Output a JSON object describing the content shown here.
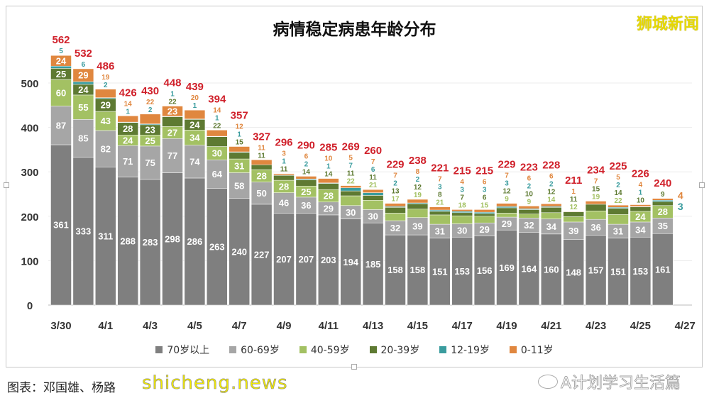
{
  "title": "病情稳定病患年龄分布",
  "watermark_top": "狮城新闻",
  "source": "图表：邓国雄、杨路",
  "watermark_site": "shicheng.news",
  "account_label": "A计划学习生活篇",
  "chart_data": {
    "type": "bar",
    "stacked": true,
    "title": "病情稳定病患年龄分布",
    "ylim": [
      0,
      550
    ],
    "yticks": [
      0,
      100,
      200,
      300,
      400,
      500
    ],
    "grid": true,
    "legend_position": "bottom",
    "categories": [
      "3/30",
      "3/31",
      "4/1",
      "4/2",
      "4/3",
      "4/4",
      "4/5",
      "4/6",
      "4/7",
      "4/8",
      "4/9",
      "4/10",
      "4/11",
      "4/12",
      "4/13",
      "4/14",
      "4/15",
      "4/16",
      "4/17",
      "4/18",
      "4/19",
      "4/20",
      "4/21",
      "4/22",
      "4/23",
      "4/24",
      "4/25",
      "4/26",
      "4/27"
    ],
    "xtick_labels": [
      "3/30",
      "4/1",
      "4/3",
      "4/5",
      "4/7",
      "4/9",
      "4/11",
      "4/13",
      "4/15",
      "4/17",
      "4/19",
      "4/21",
      "4/23",
      "4/25",
      "4/27"
    ],
    "series": [
      {
        "name": "70岁以上",
        "color": "#7f7f7f",
        "values": [
          361,
          333,
          311,
          288,
          283,
          298,
          286,
          263,
          240,
          227,
          207,
          207,
          203,
          194,
          185,
          158,
          158,
          151,
          153,
          156,
          169,
          164,
          160,
          148,
          157,
          151,
          153,
          161,
          null
        ]
      },
      {
        "name": "60-69岁",
        "color": "#a6a6a6",
        "values": [
          87,
          85,
          82,
          71,
          75,
          77,
          74,
          64,
          58,
          50,
          46,
          36,
          29,
          30,
          30,
          32,
          39,
          31,
          30,
          29,
          29,
          32,
          34,
          39,
          36,
          31,
          34,
          35,
          null
        ]
      },
      {
        "name": "40-59岁",
        "color": "#a3c163",
        "values": [
          60,
          55,
          43,
          24,
          25,
          27,
          34,
          30,
          31,
          28,
          28,
          25,
          28,
          22,
          21,
          17,
          19,
          21,
          18,
          15,
          9,
          9,
          14,
          12,
          19,
          22,
          24,
          28,
          null
        ]
      },
      {
        "name": "20-39岁",
        "color": "#5e7a32",
        "values": [
          25,
          24,
          29,
          28,
          23,
          22,
          24,
          22,
          15,
          11,
          11,
          14,
          14,
          11,
          11,
          13,
          12,
          8,
          7,
          6,
          12,
          10,
          12,
          11,
          15,
          14,
          10,
          9,
          null
        ]
      },
      {
        "name": "12-19岁",
        "color": "#3a9c9e",
        "values": [
          5,
          6,
          2,
          1,
          2,
          1,
          1,
          1,
          1,
          0,
          1,
          2,
          1,
          7,
          6,
          2,
          2,
          3,
          3,
          3,
          3,
          2,
          2,
          0,
          0,
          2,
          1,
          3,
          null
        ]
      },
      {
        "name": "0-11岁",
        "color": "#e0873f",
        "values": [
          24,
          29,
          19,
          14,
          22,
          23,
          20,
          14,
          12,
          11,
          3,
          6,
          10,
          5,
          7,
          7,
          8,
          7,
          4,
          6,
          7,
          6,
          6,
          1,
          7,
          5,
          4,
          4,
          null
        ]
      }
    ],
    "totals": [
      562,
      532,
      486,
      426,
      430,
      448,
      439,
      394,
      357,
      327,
      296,
      290,
      285,
      269,
      260,
      229,
      238,
      221,
      215,
      215,
      229,
      223,
      228,
      211,
      234,
      225,
      226,
      240,
      null
    ],
    "total_label_color": "#d0202a"
  }
}
